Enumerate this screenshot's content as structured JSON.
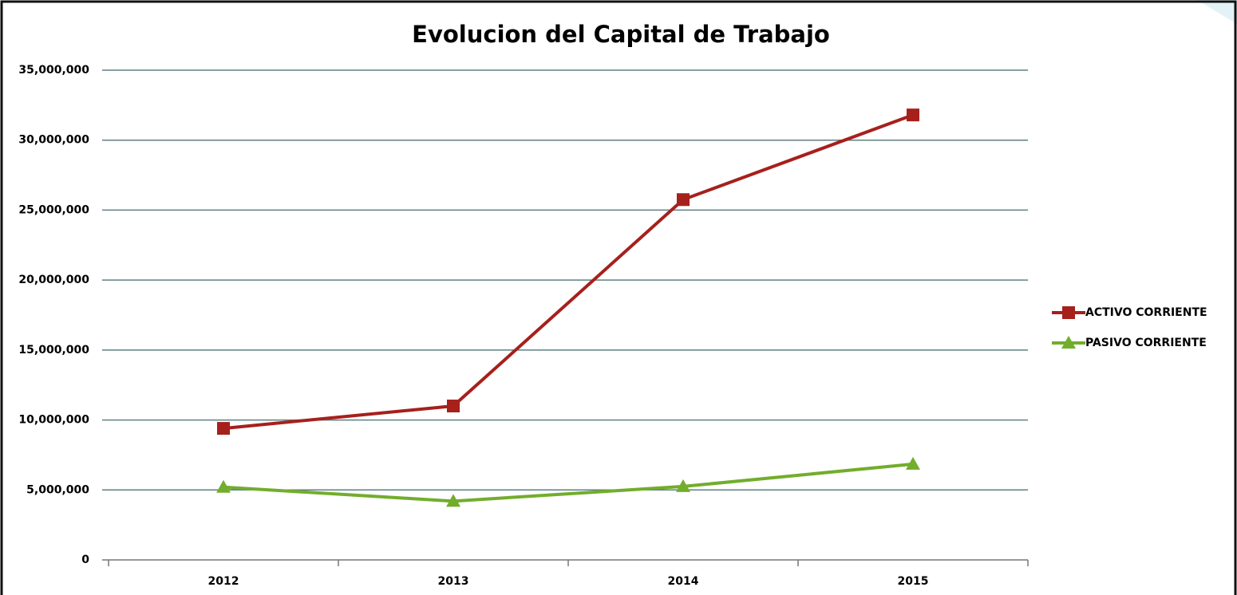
{
  "chart_data": {
    "type": "line",
    "title": "Evolucion del Capital de Trabajo",
    "categories": [
      "2012",
      "2013",
      "2014",
      "2015"
    ],
    "series": [
      {
        "name": "ACTIVO CORRIENTE",
        "color": "#a6201c",
        "marker": "square",
        "values": [
          9400000,
          11000000,
          25750000,
          31800000
        ]
      },
      {
        "name": "PASIVO CORRIENTE",
        "color": "#72ad2c",
        "marker": "triangle",
        "values": [
          5200000,
          4200000,
          5250000,
          6850000
        ]
      }
    ],
    "ylim": [
      0,
      35000000
    ],
    "yticks": [
      0,
      {
        "value": 5000000,
        "label": "5,000,000"
      },
      {
        "value": 10000000,
        "label": "10,000,000"
      },
      {
        "value": 15000000,
        "label": "15,000,000"
      },
      {
        "value": 20000000,
        "label": "20,000,000"
      },
      {
        "value": 25000000,
        "label": "25,000,000"
      },
      {
        "value": 30000000,
        "label": "30,000,000"
      },
      {
        "value": 35000000,
        "label": "35,000,000"
      }
    ],
    "grid": true,
    "legend": "right"
  }
}
